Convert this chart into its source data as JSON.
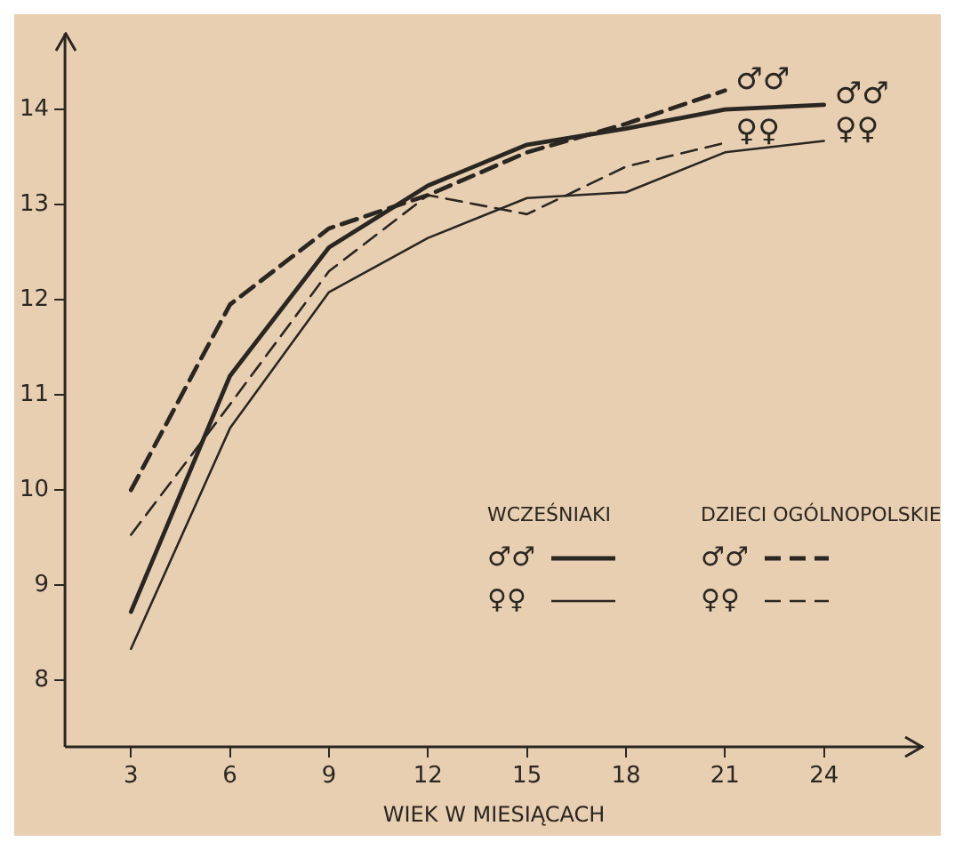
{
  "chart_data": {
    "type": "line",
    "xlabel": "WIEK W MIESIĄCACH",
    "x": [
      3,
      6,
      9,
      12,
      15,
      18,
      21,
      24
    ],
    "xlim": [
      1,
      27
    ],
    "xticks": [
      3,
      6,
      9,
      12,
      15,
      18,
      21,
      24
    ],
    "ylim": [
      7.3,
      14.8
    ],
    "yticks": [
      8,
      9,
      10,
      11,
      12,
      13,
      14
    ],
    "grid": false,
    "legend": "bottom right",
    "marker": "none",
    "series": [
      {
        "name": "♂♂",
        "color": "#2a2622",
        "values": [
          8.72,
          11.2,
          12.55,
          13.2,
          13.63,
          13.8,
          14.0,
          14.05
        ],
        "line_style": "solid"
      },
      {
        "name": "♀♀",
        "color": "#2a2622",
        "values": [
          8.33,
          10.65,
          12.08,
          12.65,
          13.07,
          13.13,
          13.55,
          13.67
        ],
        "line_style": "solid"
      },
      {
        "name": "♂♂",
        "color": "#2a2622",
        "x": [
          3,
          6,
          9,
          12,
          15,
          18,
          21
        ],
        "values": [
          10.0,
          11.95,
          12.75,
          13.1,
          13.55,
          13.85,
          14.2
        ],
        "line_style": "dashed"
      },
      {
        "name": "♀♀",
        "color": "#2a2622",
        "x": [
          3,
          6,
          9,
          12,
          15,
          18,
          21
        ],
        "values": [
          9.53,
          10.9,
          12.3,
          13.1,
          12.9,
          13.4,
          13.65
        ],
        "line_style": "dashed"
      }
    ],
    "annotations": [
      "WCZEŚNIAKI",
      "DZIECI OGÓLNOPOLSKIE"
    ]
  }
}
